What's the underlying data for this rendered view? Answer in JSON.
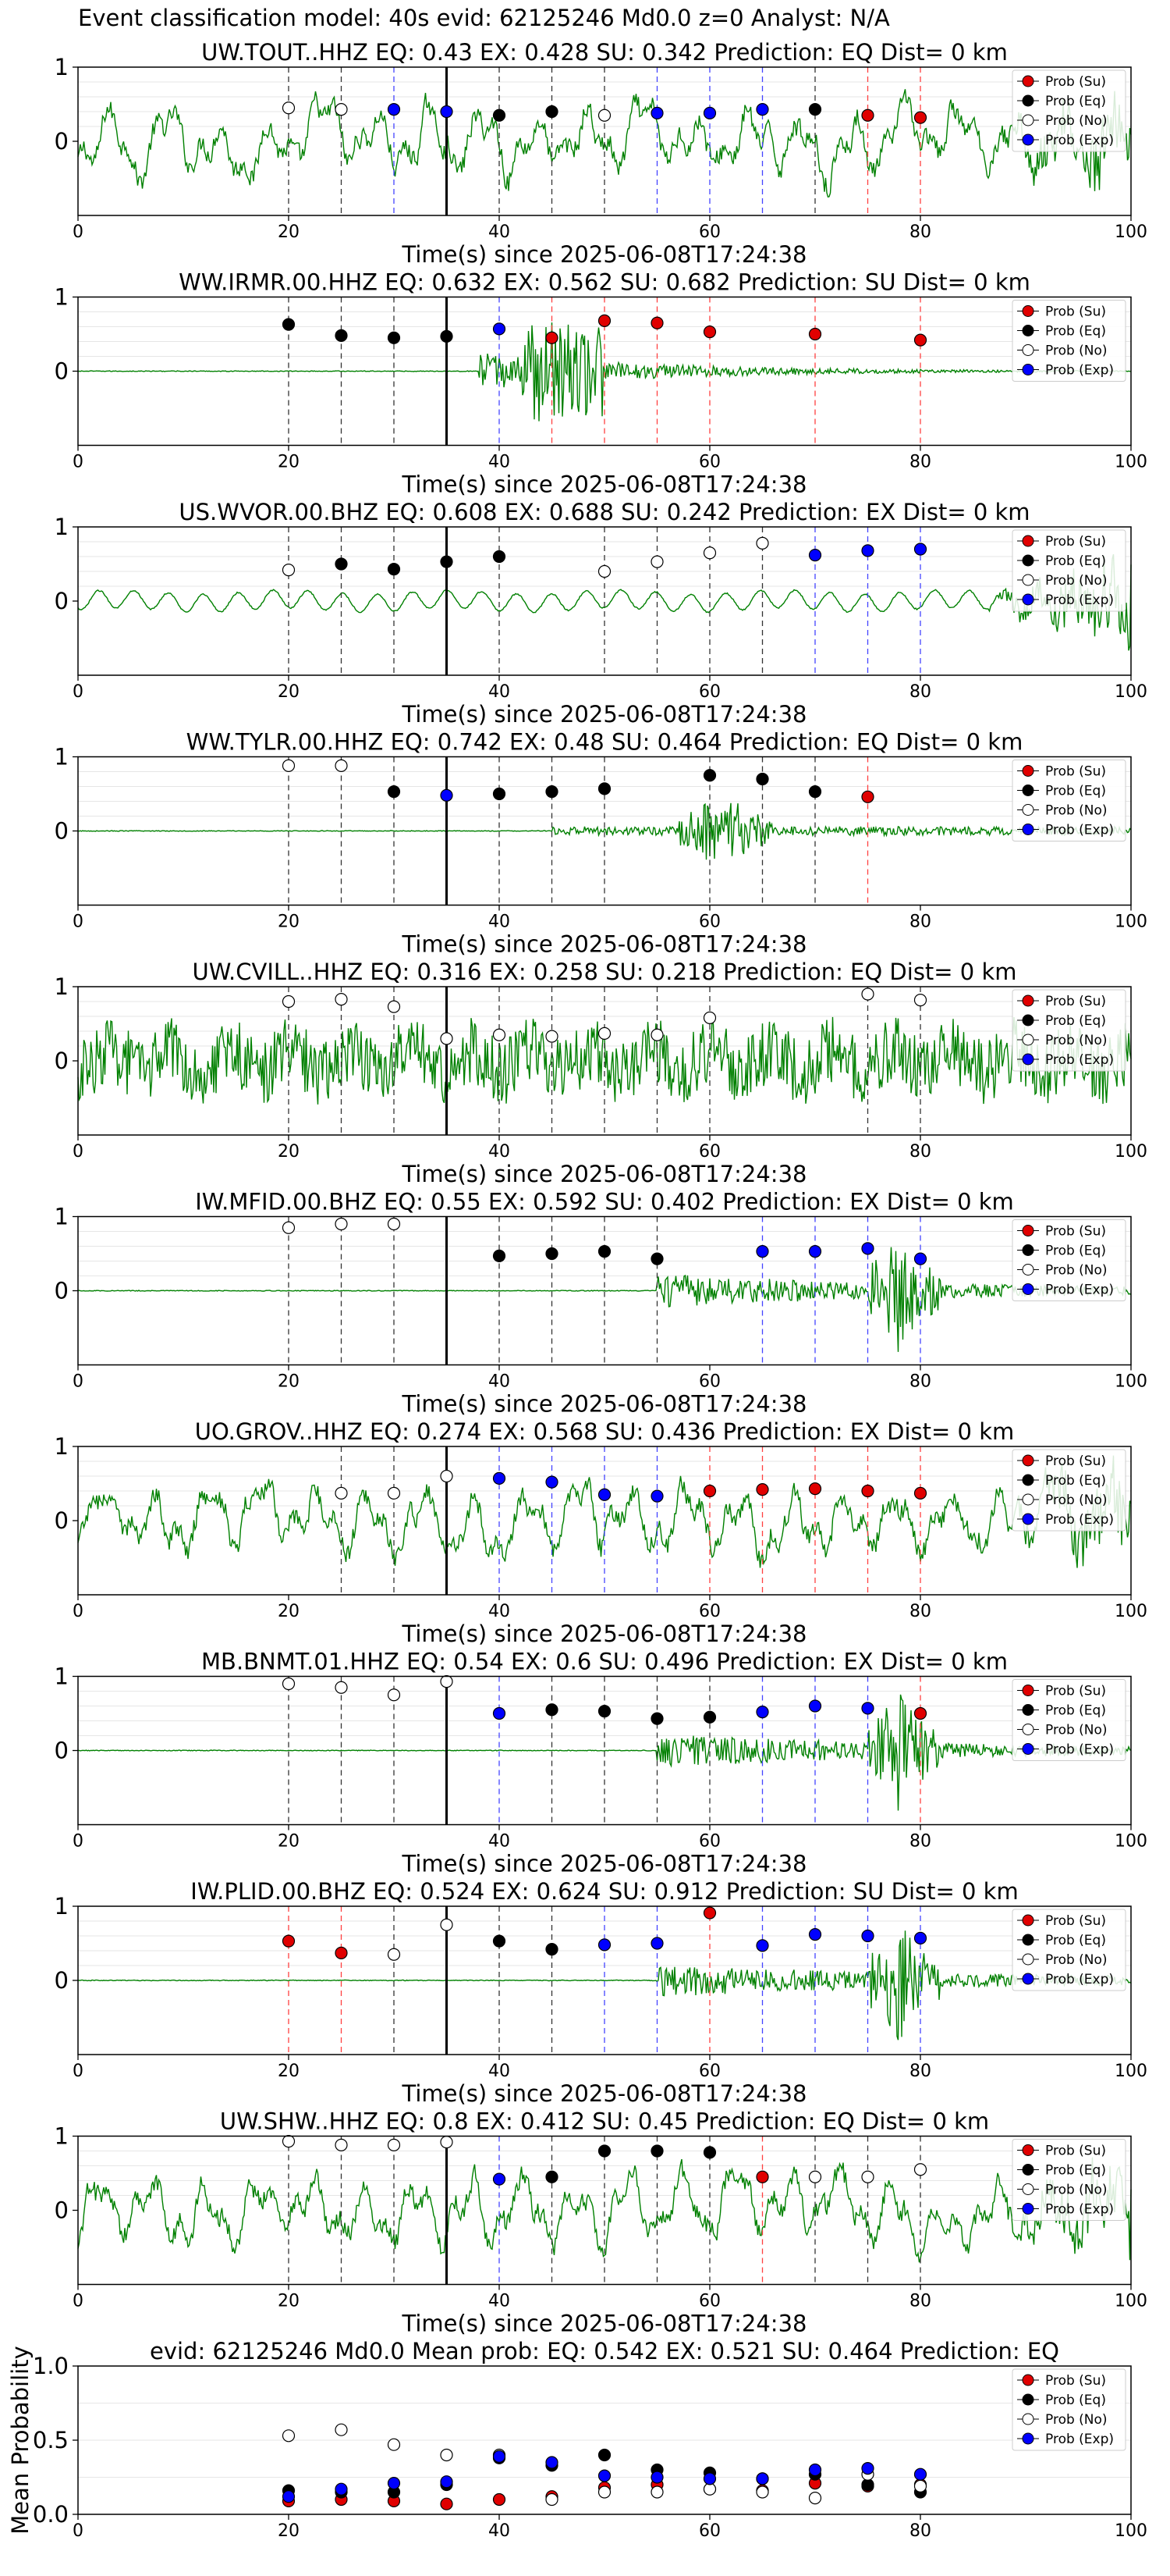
{
  "figure": {
    "title": "Event classification model: 40s evid: 62125246 Md0.0 z=0 Analyst: N/A",
    "legend_labels": [
      "Prob (Su)",
      "Prob (Eq)",
      "Prob (No)",
      "Prob (Exp)"
    ],
    "colors": {
      "su": "#e00000",
      "eq": "#000000",
      "no": "#ffffff",
      "exp": "#0000ff",
      "waveform": "#008000",
      "origin_line": "#000000"
    },
    "marker_times": [
      20,
      25,
      30,
      35,
      40,
      45,
      50,
      55,
      60,
      65,
      70,
      75,
      80
    ]
  },
  "chart_data": [
    {
      "type": "line",
      "title": "UW.TOUT..HHZ   EQ: 0.43  EX: 0.428  SU: 0.342   Prediction: EQ    Dist= 0 km",
      "xlabel": "Time(s) since 2025-06-08T17:24:38",
      "ylabel": "",
      "xlim": [
        0,
        100
      ],
      "ylim": [
        -1,
        1
      ],
      "xticks": [
        0,
        20,
        40,
        60,
        80,
        100
      ],
      "yticks": [
        0,
        1
      ],
      "origin_time": 35,
      "waveform_style": "long_period",
      "points": [
        {
          "t": 20,
          "p": 0.45,
          "cls": "no"
        },
        {
          "t": 25,
          "p": 0.43,
          "cls": "no"
        },
        {
          "t": 30,
          "p": 0.43,
          "cls": "exp"
        },
        {
          "t": 35,
          "p": 0.4,
          "cls": "exp"
        },
        {
          "t": 40,
          "p": 0.35,
          "cls": "eq"
        },
        {
          "t": 45,
          "p": 0.4,
          "cls": "eq"
        },
        {
          "t": 50,
          "p": 0.35,
          "cls": "no"
        },
        {
          "t": 55,
          "p": 0.38,
          "cls": "exp"
        },
        {
          "t": 60,
          "p": 0.38,
          "cls": "exp"
        },
        {
          "t": 65,
          "p": 0.43,
          "cls": "exp"
        },
        {
          "t": 70,
          "p": 0.43,
          "cls": "eq"
        },
        {
          "t": 75,
          "p": 0.35,
          "cls": "su"
        },
        {
          "t": 80,
          "p": 0.32,
          "cls": "su"
        }
      ]
    },
    {
      "type": "line",
      "title": "WW.IRMR.00.HHZ   EQ: 0.632  EX: 0.562  SU: 0.682   Prediction: SU    Dist= 0 km",
      "xlabel": "Time(s) since 2025-06-08T17:24:38",
      "ylabel": "",
      "xlim": [
        0,
        100
      ],
      "ylim": [
        -1,
        1
      ],
      "xticks": [
        0,
        20,
        40,
        60,
        80,
        100
      ],
      "yticks": [
        0,
        1
      ],
      "origin_time": 35,
      "waveform_style": "burst_38",
      "points": [
        {
          "t": 20,
          "p": 0.63,
          "cls": "eq"
        },
        {
          "t": 25,
          "p": 0.48,
          "cls": "eq"
        },
        {
          "t": 30,
          "p": 0.45,
          "cls": "eq"
        },
        {
          "t": 35,
          "p": 0.47,
          "cls": "eq"
        },
        {
          "t": 40,
          "p": 0.57,
          "cls": "exp"
        },
        {
          "t": 45,
          "p": 0.45,
          "cls": "su"
        },
        {
          "t": 50,
          "p": 0.68,
          "cls": "su"
        },
        {
          "t": 55,
          "p": 0.65,
          "cls": "su"
        },
        {
          "t": 60,
          "p": 0.53,
          "cls": "su"
        },
        {
          "t": 70,
          "p": 0.5,
          "cls": "su"
        },
        {
          "t": 80,
          "p": 0.42,
          "cls": "su"
        }
      ]
    },
    {
      "type": "line",
      "title": "US.WVOR.00.BHZ   EQ: 0.608  EX: 0.688  SU: 0.242   Prediction: EX    Dist= 0 km",
      "xlabel": "Time(s) since 2025-06-08T17:24:38",
      "ylabel": "",
      "xlim": [
        0,
        100
      ],
      "ylim": [
        -1,
        1
      ],
      "xticks": [
        0,
        20,
        40,
        60,
        80,
        100
      ],
      "yticks": [
        0,
        1
      ],
      "origin_time": 35,
      "waveform_style": "smooth_wave",
      "points": [
        {
          "t": 20,
          "p": 0.42,
          "cls": "no"
        },
        {
          "t": 25,
          "p": 0.5,
          "cls": "eq"
        },
        {
          "t": 30,
          "p": 0.43,
          "cls": "eq"
        },
        {
          "t": 35,
          "p": 0.53,
          "cls": "eq"
        },
        {
          "t": 40,
          "p": 0.6,
          "cls": "eq"
        },
        {
          "t": 50,
          "p": 0.4,
          "cls": "no"
        },
        {
          "t": 55,
          "p": 0.53,
          "cls": "no"
        },
        {
          "t": 60,
          "p": 0.65,
          "cls": "no"
        },
        {
          "t": 65,
          "p": 0.78,
          "cls": "no"
        },
        {
          "t": 70,
          "p": 0.62,
          "cls": "exp"
        },
        {
          "t": 75,
          "p": 0.68,
          "cls": "exp"
        },
        {
          "t": 80,
          "p": 0.7,
          "cls": "exp"
        }
      ]
    },
    {
      "type": "line",
      "title": "WW.TYLR.00.HHZ   EQ: 0.742  EX: 0.48  SU: 0.464   Prediction: EQ    Dist= 0 km",
      "xlabel": "Time(s) since 2025-06-08T17:24:38",
      "ylabel": "",
      "xlim": [
        0,
        100
      ],
      "ylim": [
        -1,
        1
      ],
      "xticks": [
        0,
        20,
        40,
        60,
        80,
        100
      ],
      "yticks": [
        0,
        1
      ],
      "origin_time": 35,
      "waveform_style": "burst_60",
      "points": [
        {
          "t": 20,
          "p": 0.88,
          "cls": "no"
        },
        {
          "t": 25,
          "p": 0.88,
          "cls": "no"
        },
        {
          "t": 30,
          "p": 0.53,
          "cls": "eq"
        },
        {
          "t": 35,
          "p": 0.48,
          "cls": "exp"
        },
        {
          "t": 40,
          "p": 0.5,
          "cls": "eq"
        },
        {
          "t": 45,
          "p": 0.53,
          "cls": "eq"
        },
        {
          "t": 50,
          "p": 0.57,
          "cls": "eq"
        },
        {
          "t": 60,
          "p": 0.75,
          "cls": "eq"
        },
        {
          "t": 65,
          "p": 0.7,
          "cls": "eq"
        },
        {
          "t": 70,
          "p": 0.53,
          "cls": "eq"
        },
        {
          "t": 75,
          "p": 0.46,
          "cls": "su"
        }
      ]
    },
    {
      "type": "line",
      "title": "UW.CVILL..HHZ   EQ: 0.316  EX: 0.258  SU: 0.218   Prediction: EQ    Dist= 0 km",
      "xlabel": "Time(s) since 2025-06-08T17:24:38",
      "ylabel": "",
      "xlim": [
        0,
        100
      ],
      "ylim": [
        -1,
        1
      ],
      "xticks": [
        0,
        20,
        40,
        60,
        80,
        100
      ],
      "yticks": [
        0,
        1
      ],
      "origin_time": 35,
      "waveform_style": "noise",
      "points": [
        {
          "t": 20,
          "p": 0.8,
          "cls": "no"
        },
        {
          "t": 25,
          "p": 0.83,
          "cls": "no"
        },
        {
          "t": 30,
          "p": 0.73,
          "cls": "no"
        },
        {
          "t": 35,
          "p": 0.3,
          "cls": "no"
        },
        {
          "t": 40,
          "p": 0.35,
          "cls": "no"
        },
        {
          "t": 45,
          "p": 0.33,
          "cls": "no"
        },
        {
          "t": 50,
          "p": 0.37,
          "cls": "no"
        },
        {
          "t": 55,
          "p": 0.35,
          "cls": "no"
        },
        {
          "t": 60,
          "p": 0.58,
          "cls": "no"
        },
        {
          "t": 75,
          "p": 0.9,
          "cls": "no"
        },
        {
          "t": 80,
          "p": 0.82,
          "cls": "no"
        }
      ]
    },
    {
      "type": "line",
      "title": "IW.MFID.00.BHZ   EQ: 0.55  EX: 0.592  SU: 0.402   Prediction: EX    Dist= 0 km",
      "xlabel": "Time(s) since 2025-06-08T17:24:38",
      "ylabel": "",
      "xlim": [
        0,
        100
      ],
      "ylim": [
        -1,
        1
      ],
      "xticks": [
        0,
        20,
        40,
        60,
        80,
        100
      ],
      "yticks": [
        0,
        1
      ],
      "origin_time": 35,
      "waveform_style": "burst_55",
      "points": [
        {
          "t": 20,
          "p": 0.85,
          "cls": "no"
        },
        {
          "t": 25,
          "p": 0.9,
          "cls": "no"
        },
        {
          "t": 30,
          "p": 0.9,
          "cls": "no"
        },
        {
          "t": 40,
          "p": 0.47,
          "cls": "eq"
        },
        {
          "t": 45,
          "p": 0.5,
          "cls": "eq"
        },
        {
          "t": 50,
          "p": 0.53,
          "cls": "eq"
        },
        {
          "t": 55,
          "p": 0.43,
          "cls": "eq"
        },
        {
          "t": 65,
          "p": 0.53,
          "cls": "exp"
        },
        {
          "t": 70,
          "p": 0.53,
          "cls": "exp"
        },
        {
          "t": 75,
          "p": 0.57,
          "cls": "exp"
        },
        {
          "t": 80,
          "p": 0.43,
          "cls": "exp"
        }
      ]
    },
    {
      "type": "line",
      "title": "UO.GROV..HHZ   EQ: 0.274  EX: 0.568  SU: 0.436   Prediction: EX    Dist= 0 km",
      "xlabel": "Time(s) since 2025-06-08T17:24:38",
      "ylabel": "",
      "xlim": [
        0,
        100
      ],
      "ylim": [
        -1,
        1
      ],
      "xticks": [
        0,
        20,
        40,
        60,
        80,
        100
      ],
      "yticks": [
        0,
        1
      ],
      "origin_time": 35,
      "waveform_style": "long_period",
      "points": [
        {
          "t": 25,
          "p": 0.37,
          "cls": "no"
        },
        {
          "t": 30,
          "p": 0.37,
          "cls": "no"
        },
        {
          "t": 35,
          "p": 0.6,
          "cls": "no"
        },
        {
          "t": 40,
          "p": 0.57,
          "cls": "exp"
        },
        {
          "t": 45,
          "p": 0.52,
          "cls": "exp"
        },
        {
          "t": 50,
          "p": 0.35,
          "cls": "exp"
        },
        {
          "t": 55,
          "p": 0.33,
          "cls": "exp"
        },
        {
          "t": 60,
          "p": 0.4,
          "cls": "su"
        },
        {
          "t": 65,
          "p": 0.42,
          "cls": "su"
        },
        {
          "t": 70,
          "p": 0.43,
          "cls": "su"
        },
        {
          "t": 75,
          "p": 0.4,
          "cls": "su"
        },
        {
          "t": 80,
          "p": 0.37,
          "cls": "su"
        }
      ]
    },
    {
      "type": "line",
      "title": "MB.BNMT.01.HHZ   EQ: 0.54  EX: 0.6  SU: 0.496   Prediction: EX    Dist= 0 km",
      "xlabel": "Time(s) since 2025-06-08T17:24:38",
      "ylabel": "",
      "xlim": [
        0,
        100
      ],
      "ylim": [
        -1,
        1
      ],
      "xticks": [
        0,
        20,
        40,
        60,
        80,
        100
      ],
      "yticks": [
        0,
        1
      ],
      "origin_time": 35,
      "waveform_style": "burst_55",
      "points": [
        {
          "t": 20,
          "p": 0.9,
          "cls": "no"
        },
        {
          "t": 25,
          "p": 0.85,
          "cls": "no"
        },
        {
          "t": 30,
          "p": 0.75,
          "cls": "no"
        },
        {
          "t": 35,
          "p": 0.93,
          "cls": "no"
        },
        {
          "t": 40,
          "p": 0.5,
          "cls": "exp"
        },
        {
          "t": 45,
          "p": 0.55,
          "cls": "eq"
        },
        {
          "t": 50,
          "p": 0.53,
          "cls": "eq"
        },
        {
          "t": 55,
          "p": 0.43,
          "cls": "eq"
        },
        {
          "t": 60,
          "p": 0.45,
          "cls": "eq"
        },
        {
          "t": 65,
          "p": 0.52,
          "cls": "exp"
        },
        {
          "t": 70,
          "p": 0.6,
          "cls": "exp"
        },
        {
          "t": 75,
          "p": 0.57,
          "cls": "exp"
        },
        {
          "t": 80,
          "p": 0.5,
          "cls": "su"
        }
      ]
    },
    {
      "type": "line",
      "title": "IW.PLID.00.BHZ   EQ: 0.524  EX: 0.624  SU: 0.912   Prediction: SU    Dist= 0 km",
      "xlabel": "Time(s) since 2025-06-08T17:24:38",
      "ylabel": "",
      "xlim": [
        0,
        100
      ],
      "ylim": [
        -1,
        1
      ],
      "xticks": [
        0,
        20,
        40,
        60,
        80,
        100
      ],
      "yticks": [
        0,
        1
      ],
      "origin_time": 35,
      "waveform_style": "burst_55",
      "points": [
        {
          "t": 20,
          "p": 0.53,
          "cls": "su"
        },
        {
          "t": 25,
          "p": 0.37,
          "cls": "su"
        },
        {
          "t": 30,
          "p": 0.35,
          "cls": "no"
        },
        {
          "t": 35,
          "p": 0.75,
          "cls": "no"
        },
        {
          "t": 40,
          "p": 0.53,
          "cls": "eq"
        },
        {
          "t": 45,
          "p": 0.42,
          "cls": "eq"
        },
        {
          "t": 50,
          "p": 0.48,
          "cls": "exp"
        },
        {
          "t": 55,
          "p": 0.5,
          "cls": "exp"
        },
        {
          "t": 60,
          "p": 0.91,
          "cls": "su"
        },
        {
          "t": 65,
          "p": 0.47,
          "cls": "exp"
        },
        {
          "t": 70,
          "p": 0.62,
          "cls": "exp"
        },
        {
          "t": 75,
          "p": 0.6,
          "cls": "exp"
        },
        {
          "t": 80,
          "p": 0.57,
          "cls": "exp"
        }
      ]
    },
    {
      "type": "line",
      "title": "UW.SHW..HHZ   EQ: 0.8  EX: 0.412  SU: 0.45   Prediction: EQ    Dist= 0 km",
      "xlabel": "Time(s) since 2025-06-08T17:24:38",
      "ylabel": "",
      "xlim": [
        0,
        100
      ],
      "ylim": [
        -1,
        1
      ],
      "xticks": [
        0,
        20,
        40,
        60,
        80,
        100
      ],
      "yticks": [
        0,
        1
      ],
      "origin_time": 35,
      "waveform_style": "long_period",
      "points": [
        {
          "t": 20,
          "p": 0.93,
          "cls": "no"
        },
        {
          "t": 25,
          "p": 0.88,
          "cls": "no"
        },
        {
          "t": 30,
          "p": 0.88,
          "cls": "no"
        },
        {
          "t": 35,
          "p": 0.92,
          "cls": "no"
        },
        {
          "t": 40,
          "p": 0.42,
          "cls": "exp"
        },
        {
          "t": 45,
          "p": 0.45,
          "cls": "eq"
        },
        {
          "t": 50,
          "p": 0.8,
          "cls": "eq"
        },
        {
          "t": 55,
          "p": 0.8,
          "cls": "eq"
        },
        {
          "t": 60,
          "p": 0.78,
          "cls": "eq"
        },
        {
          "t": 65,
          "p": 0.45,
          "cls": "su"
        },
        {
          "t": 70,
          "p": 0.45,
          "cls": "no"
        },
        {
          "t": 75,
          "p": 0.45,
          "cls": "no"
        },
        {
          "t": 80,
          "p": 0.55,
          "cls": "no"
        }
      ]
    },
    {
      "type": "scatter",
      "title": "evid: 62125246  Md0.0   Mean prob:    EQ: 0.542  EX: 0.521  SU: 0.464   Prediction: EQ",
      "xlabel": "",
      "ylabel": "Mean Probability",
      "xlim": [
        0,
        100
      ],
      "ylim": [
        0,
        1
      ],
      "xticks": [
        0,
        20,
        40,
        60,
        80,
        100
      ],
      "yticks": [
        0.0,
        0.5,
        1.0
      ],
      "series": [
        {
          "name": "Prob (Su)",
          "cls": "su",
          "x": [
            20,
            25,
            30,
            35,
            40,
            45,
            50,
            55,
            60,
            65,
            70,
            75,
            80
          ],
          "y": [
            0.09,
            0.1,
            0.09,
            0.07,
            0.1,
            0.12,
            0.18,
            0.2,
            0.17,
            0.16,
            0.21,
            0.19,
            0.2
          ]
        },
        {
          "name": "Prob (Eq)",
          "cls": "eq",
          "x": [
            20,
            25,
            30,
            35,
            40,
            45,
            50,
            55,
            60,
            65,
            70,
            75,
            80
          ],
          "y": [
            0.16,
            0.15,
            0.15,
            0.2,
            0.38,
            0.33,
            0.4,
            0.3,
            0.28,
            0.24,
            0.27,
            0.2,
            0.15
          ]
        },
        {
          "name": "Prob (No)",
          "cls": "no",
          "x": [
            20,
            25,
            30,
            35,
            40,
            45,
            50,
            55,
            60,
            65,
            70,
            75,
            80
          ],
          "y": [
            0.53,
            0.57,
            0.47,
            0.4,
            0.4,
            0.1,
            0.15,
            0.15,
            0.17,
            0.15,
            0.11,
            0.27,
            0.19
          ]
        },
        {
          "name": "Prob (Exp)",
          "cls": "exp",
          "x": [
            20,
            25,
            30,
            35,
            40,
            45,
            50,
            55,
            60,
            65,
            70,
            75,
            80
          ],
          "y": [
            0.12,
            0.17,
            0.21,
            0.22,
            0.39,
            0.35,
            0.26,
            0.25,
            0.24,
            0.24,
            0.3,
            0.31,
            0.27
          ]
        }
      ]
    }
  ]
}
